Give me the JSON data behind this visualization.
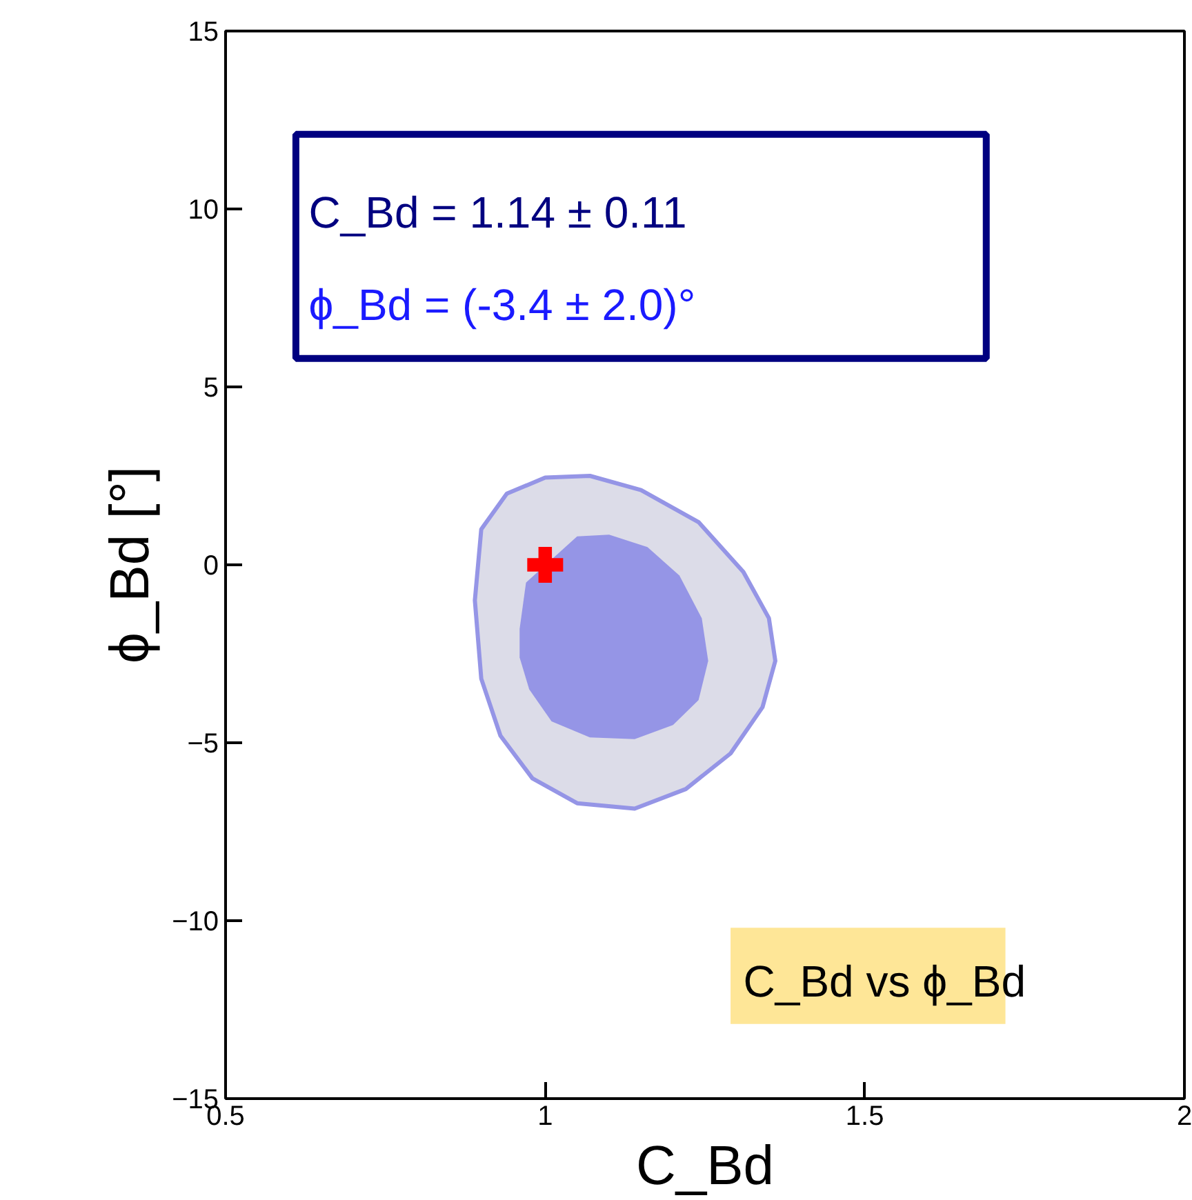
{
  "chart_data": {
    "type": "area",
    "xlabel": "C_Bd",
    "ylabel": "ϕ_Bd [°]",
    "xlim": [
      0.5,
      2
    ],
    "ylim": [
      -15,
      15
    ],
    "xticks": [
      0.5,
      1,
      1.5,
      2
    ],
    "yticks": [
      {
        "value": -15,
        "label": "−15"
      },
      {
        "value": -10,
        "label": "−10"
      },
      {
        "value": -5,
        "label": "−5"
      },
      0,
      5,
      10,
      15
    ],
    "grid": false,
    "annotations": [
      "C_Bd = 1.14 ± 0.11",
      "ϕ_Bd = (-3.4 ± 2.0)°",
      "C_Bd vs ϕ_Bd"
    ],
    "series": [
      {
        "color": "#dcdce8",
        "x": [
          0.89,
          0.9,
          0.94,
          1.0,
          1.07,
          1.15,
          1.24,
          1.31,
          1.35,
          1.36,
          1.34,
          1.29,
          1.22,
          1.14,
          1.05,
          0.98,
          0.93,
          0.9
        ],
        "values": [
          -1.0,
          1.0,
          2.0,
          2.45,
          2.5,
          2.1,
          1.2,
          -0.2,
          -1.5,
          -2.7,
          -4.0,
          -5.3,
          -6.3,
          -6.85,
          -6.7,
          -6.0,
          -4.8,
          -3.2
        ]
      },
      {
        "color": "#9595e6",
        "x": [
          0.96,
          0.97,
          1.05,
          1.1,
          1.16,
          1.21,
          1.245,
          1.255,
          1.24,
          1.2,
          1.14,
          1.07,
          1.01,
          0.975,
          0.96
        ],
        "values": [
          -1.8,
          -0.5,
          0.8,
          0.85,
          0.5,
          -0.3,
          -1.5,
          -2.7,
          -3.8,
          -4.5,
          -4.9,
          -4.85,
          -4.4,
          -3.5,
          -2.6
        ]
      },
      {
        "type": "scatter",
        "color": "#ff0000",
        "marker": "cross",
        "x": [
          1
        ],
        "values": [
          0
        ]
      }
    ]
  }
}
